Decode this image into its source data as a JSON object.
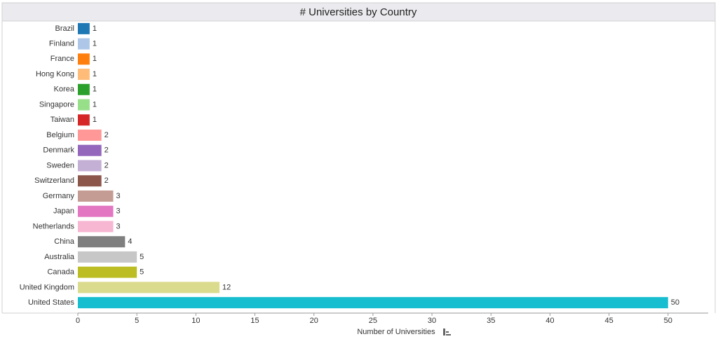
{
  "chart_data": {
    "type": "bar",
    "orientation": "horizontal",
    "title": "# Universities by Country",
    "x_label": "Number of Universities",
    "categories": [
      "Brazil",
      "Finland",
      "France",
      "Hong Kong",
      "Korea",
      "Singapore",
      "Taiwan",
      "Belgium",
      "Denmark",
      "Sweden",
      "Switzerland",
      "Germany",
      "Japan",
      "Netherlands",
      "China",
      "Australia",
      "Canada",
      "United Kingdom",
      "United States"
    ],
    "values": [
      1,
      1,
      1,
      1,
      1,
      1,
      1,
      2,
      2,
      2,
      2,
      3,
      3,
      3,
      4,
      5,
      5,
      12,
      50
    ],
    "colors": [
      "#1f77b4",
      "#aec7e8",
      "#ff7f0e",
      "#ffbb78",
      "#2ca02c",
      "#98df8a",
      "#d62728",
      "#ff9896",
      "#9467bd",
      "#c5b0d5",
      "#8c564b",
      "#c49c94",
      "#e377c2",
      "#f7b6d2",
      "#7f7f7f",
      "#c7c7c7",
      "#bcbd22",
      "#dbdb8d",
      "#17becf"
    ],
    "xlim": [
      0,
      53.4
    ],
    "xticks": [
      0,
      5,
      10,
      15,
      20,
      25,
      30,
      35,
      40,
      45,
      50
    ],
    "grid": false
  }
}
